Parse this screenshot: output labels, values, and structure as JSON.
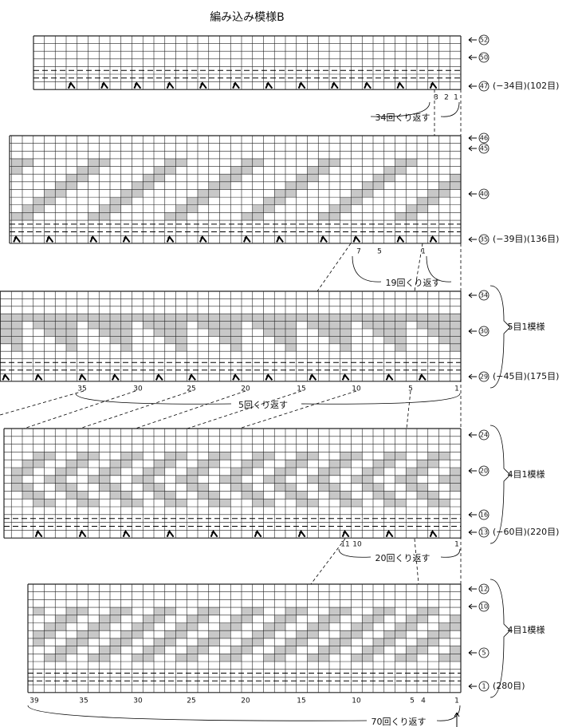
{
  "title": "編み込み模様B",
  "sections": [
    {
      "rows": [
        {
          "label": "52"
        },
        {
          "label": "50"
        },
        {
          "label": "47",
          "note": "(−34目)(102目)"
        }
      ],
      "columns": [
        "3",
        "2",
        "1"
      ],
      "repeat": "34回くり返す"
    },
    {
      "rows": [
        {
          "label": "46"
        },
        {
          "label": "45"
        },
        {
          "label": "40"
        },
        {
          "label": "35",
          "note": "(−39目)(136目)"
        }
      ],
      "columns": [
        "7",
        "5",
        "1"
      ],
      "repeat": "19回くり返す"
    },
    {
      "rows": [
        {
          "label": "34"
        },
        {
          "label": "30"
        },
        {
          "label": "29",
          "note": "(−45目)(175目)"
        }
      ],
      "motif": "5目1模様",
      "columns": [
        "35",
        "30",
        "25",
        "20",
        "15",
        "10",
        "5",
        "1"
      ],
      "repeat": "5回くり返す"
    },
    {
      "rows": [
        {
          "label": "24"
        },
        {
          "label": "20"
        },
        {
          "label": "16"
        },
        {
          "label": "13",
          "note": "(−60目)(220目)"
        }
      ],
      "motif": "4目1模様",
      "columns": [
        "11",
        "10",
        "1"
      ],
      "repeat": "20回くり返す"
    },
    {
      "rows": [
        {
          "label": "12"
        },
        {
          "label": "10"
        },
        {
          "label": "5"
        },
        {
          "label": "1",
          "note": "(280目)"
        }
      ],
      "motif": "4目1模様",
      "columns": [
        "39",
        "35",
        "30",
        "25",
        "20",
        "15",
        "10",
        "5",
        "4",
        "1"
      ],
      "repeat": "70回くり返す"
    }
  ]
}
